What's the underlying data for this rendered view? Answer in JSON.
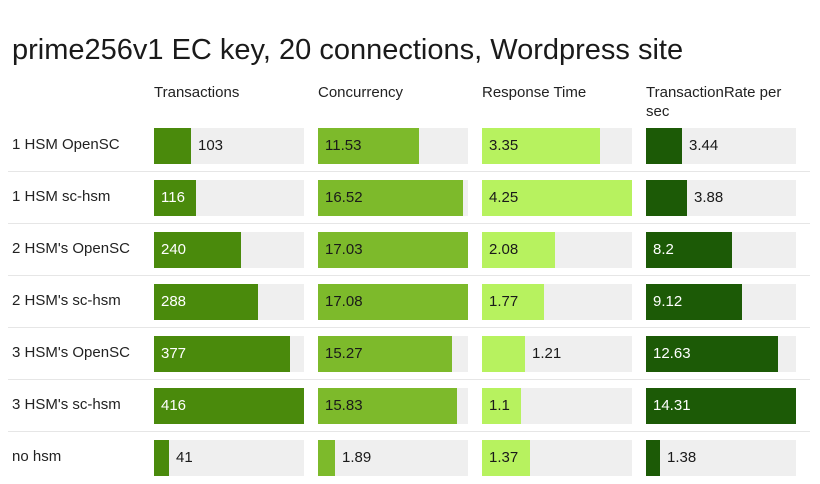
{
  "chart_data": {
    "type": "bar",
    "title": "prime256v1 EC key, 20 connections, Wordpress site",
    "categories": [
      "1 HSM OpenSC",
      "1 HSM sc-hsm",
      "2 HSM's OpenSC",
      "2 HSM's sc-hsm",
      "3 HSM's OpenSC",
      "3 HSM's sc-hsm",
      "no hsm"
    ],
    "series": [
      {
        "name": "Transactions",
        "color": "#4a8a0c",
        "textColor": "#ffffff",
        "values": [
          103,
          116,
          240,
          288,
          377,
          416,
          41
        ],
        "labels": [
          "103",
          "116",
          "240",
          "288",
          "377",
          "416",
          "41"
        ]
      },
      {
        "name": "Concurrency",
        "color": "#7dba2b",
        "textColor": "#1a1a1a",
        "values": [
          11.53,
          16.52,
          17.03,
          17.08,
          15.27,
          15.83,
          1.89
        ],
        "labels": [
          "11.53",
          "16.52",
          "17.03",
          "17.08",
          "15.27",
          "15.83",
          "1.89"
        ]
      },
      {
        "name": "Response Time",
        "color": "#b7f25f",
        "textColor": "#1a1a1a",
        "values": [
          3.35,
          4.25,
          2.08,
          1.77,
          1.21,
          1.1,
          1.37
        ],
        "labels": [
          "3.35",
          "4.25",
          "2.08",
          "1.77",
          "1.21",
          "1.1",
          "1.37"
        ]
      },
      {
        "name": "TransactionRate per sec",
        "color": "#1c5a06",
        "textColor": "#ffffff",
        "values": [
          3.44,
          3.88,
          8.2,
          9.12,
          12.63,
          14.31,
          1.38
        ],
        "labels": [
          "3.44",
          "3.88",
          "8.2",
          "9.12",
          "12.63",
          "14.31",
          "1.38"
        ]
      }
    ],
    "grid": false,
    "legend": "column headers"
  }
}
